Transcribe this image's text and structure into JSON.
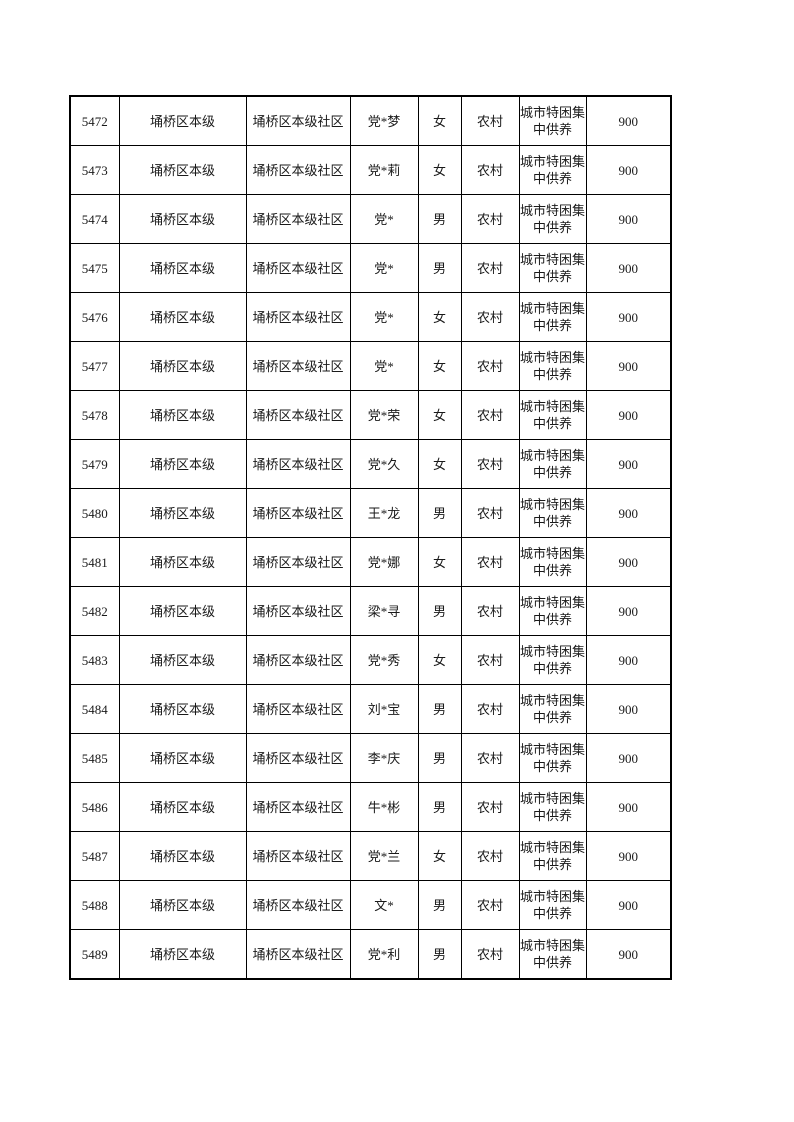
{
  "document": {
    "kind": "welfare-roster-table-page",
    "background_color": "#ffffff",
    "text_color": "#1a1a1a",
    "grid_color": "#000000"
  },
  "table": {
    "column_keys": [
      "seq",
      "region",
      "community",
      "name",
      "gender",
      "residence",
      "support_type",
      "amount"
    ],
    "rows": [
      [
        "5472",
        "埇桥区本级",
        "埇桥区本级社区",
        "党*梦",
        "女",
        "农村",
        "城市特困集中供养",
        "900"
      ],
      [
        "5473",
        "埇桥区本级",
        "埇桥区本级社区",
        "党*莉",
        "女",
        "农村",
        "城市特困集中供养",
        "900"
      ],
      [
        "5474",
        "埇桥区本级",
        "埇桥区本级社区",
        "党*",
        "男",
        "农村",
        "城市特困集中供养",
        "900"
      ],
      [
        "5475",
        "埇桥区本级",
        "埇桥区本级社区",
        "党*",
        "男",
        "农村",
        "城市特困集中供养",
        "900"
      ],
      [
        "5476",
        "埇桥区本级",
        "埇桥区本级社区",
        "党*",
        "女",
        "农村",
        "城市特困集中供养",
        "900"
      ],
      [
        "5477",
        "埇桥区本级",
        "埇桥区本级社区",
        "党*",
        "女",
        "农村",
        "城市特困集中供养",
        "900"
      ],
      [
        "5478",
        "埇桥区本级",
        "埇桥区本级社区",
        "党*荣",
        "女",
        "农村",
        "城市特困集中供养",
        "900"
      ],
      [
        "5479",
        "埇桥区本级",
        "埇桥区本级社区",
        "党*久",
        "女",
        "农村",
        "城市特困集中供养",
        "900"
      ],
      [
        "5480",
        "埇桥区本级",
        "埇桥区本级社区",
        "王*龙",
        "男",
        "农村",
        "城市特困集中供养",
        "900"
      ],
      [
        "5481",
        "埇桥区本级",
        "埇桥区本级社区",
        "党*娜",
        "女",
        "农村",
        "城市特困集中供养",
        "900"
      ],
      [
        "5482",
        "埇桥区本级",
        "埇桥区本级社区",
        "梁*寻",
        "男",
        "农村",
        "城市特困集中供养",
        "900"
      ],
      [
        "5483",
        "埇桥区本级",
        "埇桥区本级社区",
        "党*秀",
        "女",
        "农村",
        "城市特困集中供养",
        "900"
      ],
      [
        "5484",
        "埇桥区本级",
        "埇桥区本级社区",
        "刘*宝",
        "男",
        "农村",
        "城市特困集中供养",
        "900"
      ],
      [
        "5485",
        "埇桥区本级",
        "埇桥区本级社区",
        "李*庆",
        "男",
        "农村",
        "城市特困集中供养",
        "900"
      ],
      [
        "5486",
        "埇桥区本级",
        "埇桥区本级社区",
        "牛*彬",
        "男",
        "农村",
        "城市特困集中供养",
        "900"
      ],
      [
        "5487",
        "埇桥区本级",
        "埇桥区本级社区",
        "党*兰",
        "女",
        "农村",
        "城市特困集中供养",
        "900"
      ],
      [
        "5488",
        "埇桥区本级",
        "埇桥区本级社区",
        "文*",
        "男",
        "农村",
        "城市特困集中供养",
        "900"
      ],
      [
        "5489",
        "埇桥区本级",
        "埇桥区本级社区",
        "党*利",
        "男",
        "农村",
        "城市特困集中供养",
        "900"
      ]
    ]
  }
}
